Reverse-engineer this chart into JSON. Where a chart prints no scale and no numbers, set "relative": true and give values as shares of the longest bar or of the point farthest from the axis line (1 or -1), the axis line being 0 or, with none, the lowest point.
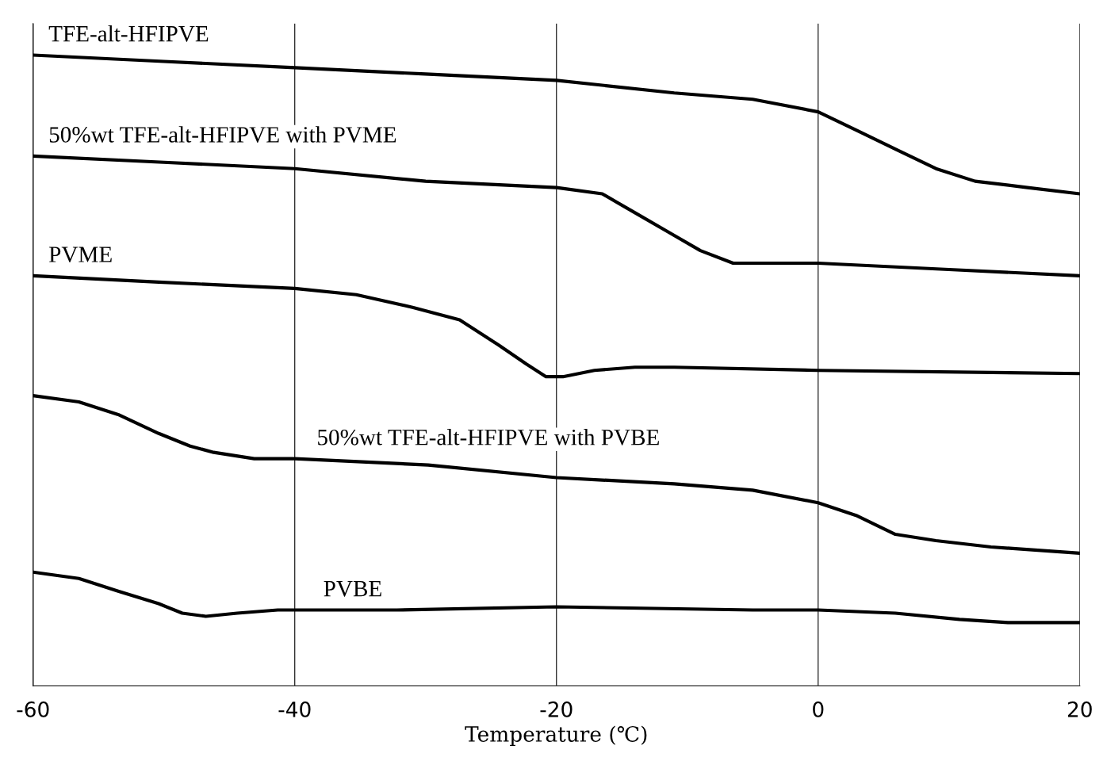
{
  "chart_data": {
    "type": "line",
    "relative": true,
    "xlabel": "Temperature (℃)",
    "xlim": [
      -60,
      20
    ],
    "xticks": [
      -60,
      -40,
      -20,
      0,
      20
    ],
    "grid": "x",
    "marker": "none",
    "line_style": "solid",
    "series": [
      {
        "color": "#000000",
        "x": [
          -60,
          -50,
          -40,
          -30,
          -20,
          -11,
          -5,
          0,
          3,
          6,
          9,
          12,
          16,
          20
        ],
        "values": [
          1.0,
          0.99,
          0.98,
          0.97,
          0.96,
          0.94,
          0.93,
          0.91,
          0.88,
          0.85,
          0.82,
          0.8,
          0.79,
          0.78
        ]
      },
      {
        "color": "#000000",
        "x": [
          -60,
          -50,
          -40,
          -30,
          -20,
          -16.5,
          -14,
          -11.5,
          -9,
          -6.5,
          -4,
          0,
          10,
          20
        ],
        "values": [
          0.84,
          0.83,
          0.82,
          0.8,
          0.79,
          0.78,
          0.75,
          0.72,
          0.69,
          0.67,
          0.67,
          0.67,
          0.66,
          0.65
        ]
      },
      {
        "color": "#000000",
        "x": [
          -60,
          -50.4,
          -40,
          -35.3,
          -31,
          -27.4,
          -24.4,
          -22.3,
          -20.8,
          -19.5,
          -17.1,
          -14,
          -11,
          0,
          20
        ],
        "values": [
          0.65,
          0.64,
          0.63,
          0.62,
          0.6,
          0.58,
          0.54,
          0.51,
          0.49,
          0.49,
          0.5,
          0.505,
          0.505,
          0.5,
          0.495
        ]
      },
      {
        "color": "#000000",
        "x": [
          -60,
          -56.5,
          -53.5,
          -50.4,
          -48,
          -46.2,
          -43.1,
          -40,
          -29.8,
          -20,
          -11,
          -5,
          0,
          2.9,
          5.9,
          9,
          13.2,
          20
        ],
        "values": [
          0.46,
          0.45,
          0.43,
          0.4,
          0.38,
          0.37,
          0.36,
          0.36,
          0.35,
          0.33,
          0.32,
          0.31,
          0.29,
          0.27,
          0.24,
          0.23,
          0.22,
          0.21
        ]
      },
      {
        "color": "#000000",
        "x": [
          -60,
          -56.5,
          -53.5,
          -50.4,
          -48.6,
          -46.8,
          -44.4,
          -41.3,
          -32.2,
          -20,
          -5,
          0,
          5.9,
          10.8,
          14.5,
          20
        ],
        "values": [
          0.18,
          0.17,
          0.15,
          0.13,
          0.115,
          0.11,
          0.115,
          0.12,
          0.12,
          0.125,
          0.12,
          0.12,
          0.115,
          0.105,
          0.1,
          0.1
        ]
      }
    ],
    "annotations": [
      {
        "text": "TFE-alt-HFIPVE",
        "x": -60,
        "y": 1.0
      },
      {
        "text": "50%wt TFE-alt-HFIPVE with PVME",
        "x": -60,
        "y": 0.84
      },
      {
        "text": "PVME",
        "x": -60,
        "y": 0.65
      },
      {
        "text": "50%wt TFE-alt-HFIPVE with PVBE",
        "x": -39.5,
        "y": 0.36
      },
      {
        "text": "PVBE",
        "x": -39,
        "y": 0.12
      }
    ]
  }
}
